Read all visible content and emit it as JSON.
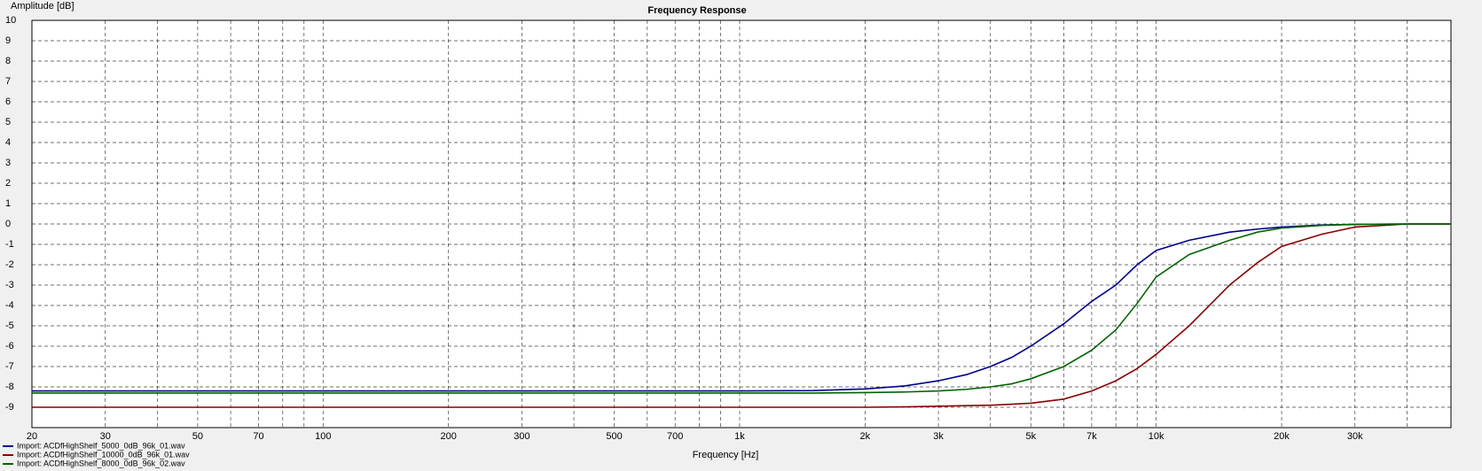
{
  "chart_data": {
    "type": "line",
    "title": "Frequency Response",
    "y_label": "Amplitude [dB]",
    "x_label": "Frequency [Hz]",
    "log_x": true,
    "grid": true,
    "legend": "bottom-left",
    "xlim": [
      20,
      51000
    ],
    "ylim": [
      -10,
      10
    ],
    "xticks": [
      20,
      30,
      50,
      70,
      100,
      200,
      300,
      500,
      700,
      {
        "value": 1000,
        "label": "1k"
      },
      {
        "value": 2000,
        "label": "2k"
      },
      {
        "value": 3000,
        "label": "3k"
      },
      {
        "value": 5000,
        "label": "5k"
      },
      {
        "value": 7000,
        "label": "7k"
      },
      {
        "value": 10000,
        "label": "10k"
      },
      {
        "value": 20000,
        "label": "20k"
      },
      {
        "value": 30000,
        "label": "30k"
      }
    ],
    "xgrid_minor": [
      40,
      60,
      80,
      90,
      400,
      600,
      800,
      900,
      4000,
      6000,
      8000,
      9000,
      40000
    ],
    "yticks": [
      -9,
      -8,
      -7,
      -6,
      -5,
      -4,
      -3,
      -2,
      -1,
      0,
      1,
      2,
      3,
      4,
      5,
      6,
      7,
      8,
      9,
      10
    ],
    "x": [
      20,
      50,
      100,
      200,
      500,
      1000,
      1500,
      2000,
      2500,
      3000,
      3500,
      4000,
      4500,
      5000,
      6000,
      7000,
      8000,
      9000,
      10000,
      12000,
      15000,
      17500,
      20000,
      25000,
      30000,
      40000,
      51000
    ],
    "series": [
      {
        "name": "Import: ACDfHighShelf_5000_0dB_96k_01.wav",
        "color": "#00008b",
        "values": [
          -8.2,
          -8.2,
          -8.2,
          -8.2,
          -8.2,
          -8.2,
          -8.18,
          -8.1,
          -7.95,
          -7.7,
          -7.4,
          -7.0,
          -6.55,
          -6.0,
          -4.9,
          -3.8,
          -3.0,
          -2.0,
          -1.3,
          -0.8,
          -0.4,
          -0.25,
          -0.15,
          -0.05,
          -0.02,
          0,
          0
        ]
      },
      {
        "name": "Import: ACDfHighShelf_10000_0dB_96k_01.wav",
        "color": "#8b0000",
        "values": [
          -9.0,
          -9.0,
          -9.0,
          -9.0,
          -9.0,
          -9.0,
          -9.0,
          -9.0,
          -8.98,
          -8.95,
          -8.92,
          -8.9,
          -8.85,
          -8.8,
          -8.6,
          -8.2,
          -7.7,
          -7.1,
          -6.4,
          -5.0,
          -3.0,
          -1.9,
          -1.1,
          -0.5,
          -0.15,
          0,
          0
        ]
      },
      {
        "name": "Import: ACDfHighShelf_8000_0dB_96k_02.wav",
        "color": "#006400",
        "values": [
          -8.3,
          -8.3,
          -8.3,
          -8.3,
          -8.3,
          -8.3,
          -8.3,
          -8.28,
          -8.25,
          -8.2,
          -8.12,
          -8.0,
          -7.85,
          -7.6,
          -7.0,
          -6.2,
          -5.2,
          -3.9,
          -2.6,
          -1.5,
          -0.8,
          -0.4,
          -0.2,
          -0.07,
          -0.02,
          0,
          0
        ]
      }
    ]
  }
}
